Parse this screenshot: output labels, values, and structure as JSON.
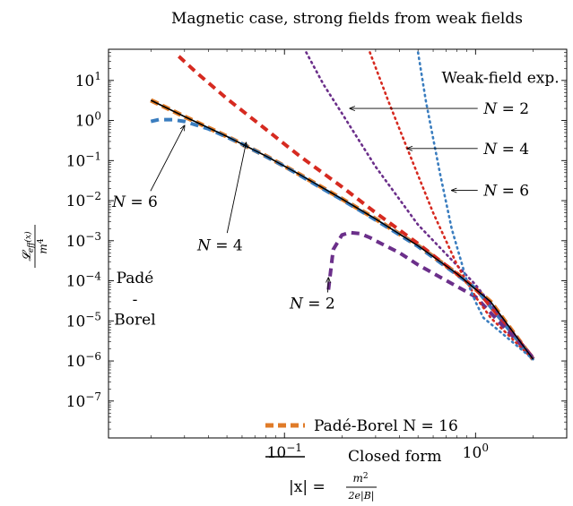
{
  "chart_data": {
    "type": "line",
    "title": "Magnetic case, strong fields from weak fields",
    "xlabel_lhs": "|x| =",
    "xlabel_num": "m",
    "xlabel_num_exp": "2",
    "xlabel_den": "2e|B|",
    "ylabel_num": "𝓛",
    "ylabel_sub": "eff",
    "ylabel_arg": "(x)",
    "ylabel_den": "m",
    "ylabel_den_exp": "4",
    "x_scale": "log",
    "y_scale": "log",
    "xlim": [
      0.012,
      3.0
    ],
    "ylim": [
      1.2e-08,
      60
    ],
    "x_ticks": [
      {
        "value": 0.1,
        "base": "10",
        "exp": "−1"
      },
      {
        "value": 1.0,
        "base": "10",
        "exp": "0"
      }
    ],
    "y_ticks": [
      {
        "value": 10,
        "base": "10",
        "exp": "1"
      },
      {
        "value": 1,
        "base": "10",
        "exp": "0"
      },
      {
        "value": 0.1,
        "base": "10",
        "exp": "−1"
      },
      {
        "value": 0.01,
        "base": "10",
        "exp": "−2"
      },
      {
        "value": 0.001,
        "base": "10",
        "exp": "−3"
      },
      {
        "value": 0.0001,
        "base": "10",
        "exp": "−4"
      },
      {
        "value": 1e-05,
        "base": "10",
        "exp": "−5"
      },
      {
        "value": 1e-06,
        "base": "10",
        "exp": "−6"
      },
      {
        "value": 1e-07,
        "base": "10",
        "exp": "−7"
      }
    ],
    "legend_placement": "bottom-right",
    "legend": [
      {
        "label": "Padé-Borel N = 16",
        "color": "#e07b28",
        "style": "dashed-thick"
      },
      {
        "label": "Closed form",
        "color": "#000000",
        "style": "solid"
      }
    ],
    "series": [
      {
        "name": "Closed form",
        "color": "#000000",
        "style": "solid",
        "x": [
          0.02,
          0.03,
          0.05,
          0.08,
          0.12,
          0.2,
          0.3,
          0.5,
          0.8,
          1.2,
          2.0
        ],
        "y": [
          3.2,
          1.25,
          0.4,
          0.13,
          0.045,
          0.011,
          0.0035,
          0.00075,
          0.00015,
          3e-05,
          1.1e-06
        ]
      },
      {
        "name": "Padé-Borel N = 16",
        "color": "#e07b28",
        "style": "dashed-thick",
        "x": [
          0.02,
          0.03,
          0.05,
          0.08,
          0.12,
          0.2,
          0.3,
          0.5,
          0.8,
          1.2,
          2.0
        ],
        "y": [
          3.2,
          1.25,
          0.4,
          0.13,
          0.045,
          0.011,
          0.0035,
          0.00075,
          0.00015,
          3e-05,
          1.1e-06
        ]
      },
      {
        "color": "#3a7dbf",
        "style": "dashed",
        "x": [
          0.02,
          0.022,
          0.026,
          0.03,
          0.04,
          0.06,
          0.1,
          0.15,
          0.2,
          0.3,
          0.5,
          1.0,
          2.0
        ],
        "y": [
          0.95,
          1.05,
          1.05,
          0.95,
          0.62,
          0.26,
          0.072,
          0.023,
          0.0105,
          0.0033,
          0.00072,
          6.5e-05,
          1.1e-06
        ]
      },
      {
        "color": "#d62a20",
        "style": "dashed",
        "x": [
          0.028,
          0.035,
          0.05,
          0.08,
          0.12,
          0.2,
          0.3,
          0.5,
          1.0,
          2.0
        ],
        "y": [
          40,
          15,
          3.5,
          0.6,
          0.13,
          0.022,
          0.005,
          0.00085,
          6.5e-05,
          1.2e-06
        ]
      },
      {
        "color": "#6b2f8a",
        "style": "dashed",
        "x": [
          0.17,
          0.18,
          0.2,
          0.22,
          0.25,
          0.28,
          0.3,
          0.4,
          0.5,
          1.0,
          2.0
        ],
        "y": [
          6e-05,
          0.0006,
          0.0014,
          0.0016,
          0.0015,
          0.0012,
          0.001,
          0.0005,
          0.00025,
          4e-05,
          1.2e-06
        ]
      },
      {
        "color": "#6b2f8a",
        "style": "dotted",
        "x": [
          0.13,
          0.16,
          0.2,
          0.3,
          0.5,
          1.0,
          2.0
        ],
        "y": [
          50,
          8,
          1.5,
          0.07,
          0.0025,
          8e-05,
          1.2e-06
        ]
      },
      {
        "color": "#d62a20",
        "style": "dotted",
        "x": [
          0.28,
          0.35,
          0.45,
          0.6,
          0.8,
          1.0,
          1.2,
          2.0
        ],
        "y": [
          50,
          3.0,
          0.15,
          0.005,
          0.00025,
          4e-05,
          1.2e-05,
          1.1e-06
        ]
      },
      {
        "color": "#3a7dbf",
        "style": "dotted",
        "x": [
          0.5,
          0.55,
          0.65,
          0.75,
          0.9,
          1.0,
          1.1,
          2.0
        ],
        "y": [
          50,
          3.0,
          0.05,
          0.002,
          0.0001,
          3e-05,
          1.2e-05,
          1.1e-06
        ]
      }
    ],
    "annotations": [
      {
        "label_main": "Weak-field exp.",
        "label": "",
        "x": 1.35,
        "y": 12,
        "arrow": false
      },
      {
        "label_main": "",
        "label": "N = 2",
        "x": 1.45,
        "y": 2.0,
        "arrow_to": [
          0.22,
          2.0
        ]
      },
      {
        "label_main": "",
        "label": "N = 4",
        "x": 1.45,
        "y": 0.2,
        "arrow_to": [
          0.44,
          0.2
        ]
      },
      {
        "label_main": "",
        "label": "N = 6",
        "x": 1.45,
        "y": 0.018,
        "arrow_to": [
          0.75,
          0.018
        ]
      },
      {
        "label_main": "",
        "label": "N = 6",
        "x": 0.0165,
        "y": 0.0095,
        "arrow_to": [
          0.03,
          0.75
        ]
      },
      {
        "label_main": "",
        "label": "N = 4",
        "x": 0.046,
        "y": 0.00078,
        "arrow_to": [
          0.063,
          0.28
        ]
      },
      {
        "label_main": "",
        "label": "N = 2",
        "x": 0.14,
        "y": 2.8e-05,
        "arrow_to": [
          0.17,
          0.00012
        ]
      },
      {
        "label_main": "Padé",
        "label": "",
        "x": 0.0165,
        "y": 0.00012,
        "arrow": false
      },
      {
        "label_main": "-",
        "label": "",
        "x": 0.0165,
        "y": 3.5e-05,
        "arrow": false
      },
      {
        "label_main": "Borel",
        "label": "",
        "x": 0.0165,
        "y": 1.1e-05,
        "arrow": false
      }
    ]
  }
}
